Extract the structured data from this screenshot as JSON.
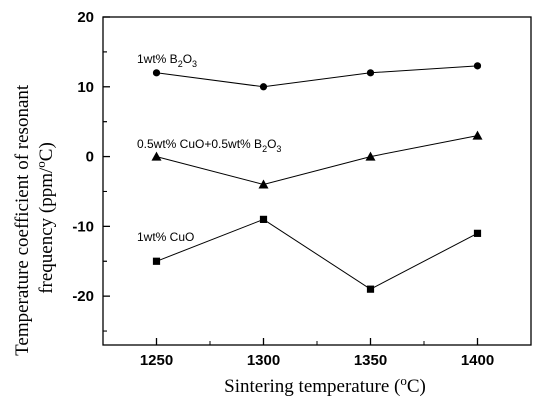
{
  "chart_data": {
    "type": "line",
    "title": "",
    "xlabel": "Sintering temperature (°C)",
    "xlabel_main": "Sintering  temperature (",
    "xlabel_unit_sup": "o",
    "xlabel_unit_end": "C)",
    "ylabel_line1": "Temperature coefficient of resonant",
    "ylabel_line2_main": "frequency (ppm/",
    "ylabel_line2_sup": "o",
    "ylabel_line2_end": "C)",
    "x": [
      1250,
      1300,
      1350,
      1400
    ],
    "xlim": [
      1225,
      1425
    ],
    "ylim": [
      -27,
      20
    ],
    "yticks": [
      20,
      10,
      0,
      -10,
      -20
    ],
    "grid": false,
    "legend": "none",
    "series": [
      {
        "name": "1wt% B2O3",
        "values": [
          12,
          10,
          12,
          13
        ],
        "marker": "circle",
        "label_parts": [
          "1wt% B",
          "2",
          "O",
          "3"
        ]
      },
      {
        "name": "0.5wt% CuO+0.5wt% B2O3",
        "values": [
          0,
          -4,
          0,
          3
        ],
        "marker": "triangle",
        "label_parts": [
          "0.5wt% CuO+0.5wt% B",
          "2",
          "O",
          "3"
        ]
      },
      {
        "name": "1wt% CuO",
        "values": [
          -15,
          -9,
          -19,
          -11
        ],
        "marker": "square",
        "label_parts": [
          "1wt% CuO"
        ]
      }
    ],
    "line_color": "#000000"
  }
}
